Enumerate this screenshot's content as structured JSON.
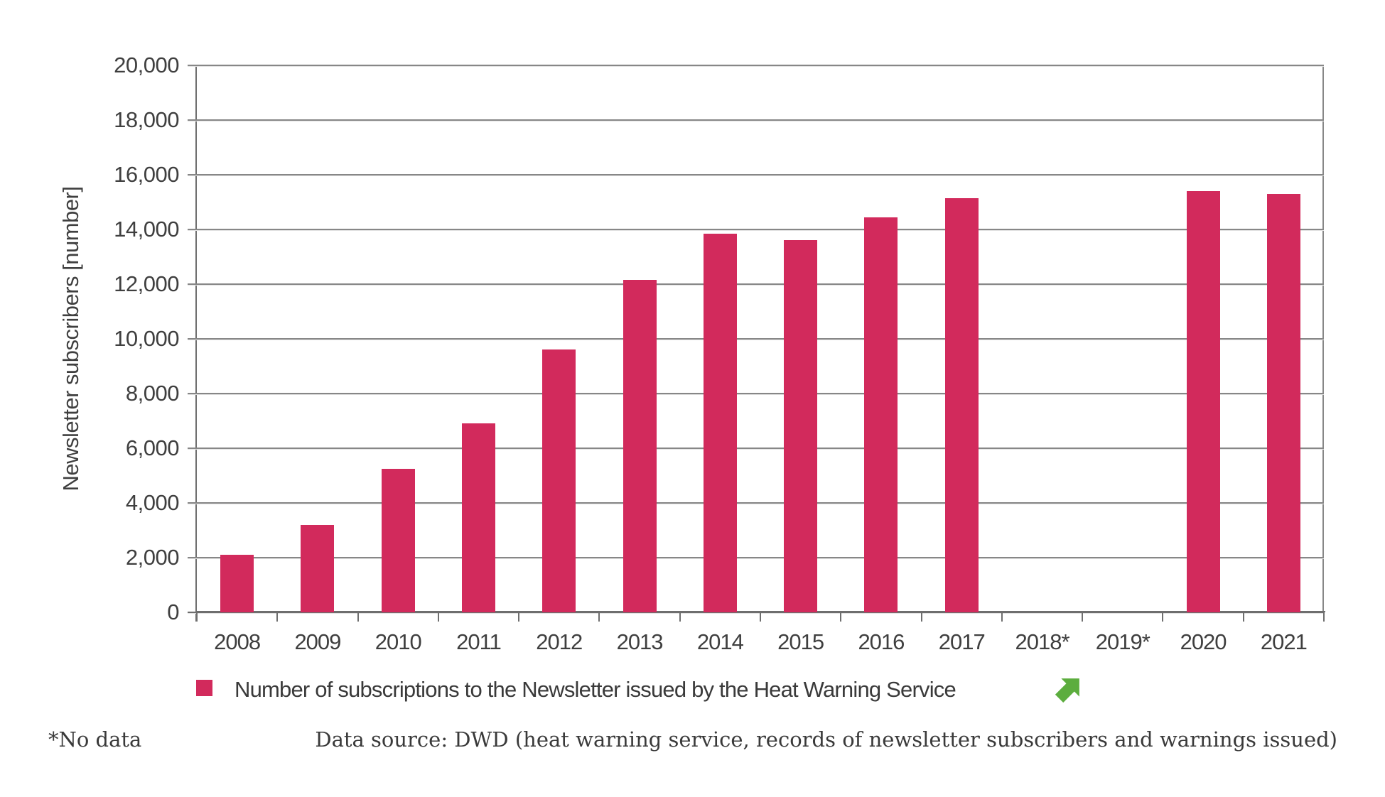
{
  "colors": {
    "bar": "#d22a5c",
    "gridline": "#878787",
    "axis": "#6e6e6e",
    "text": "#3f3f3f",
    "arrow_green": "#5cad3e",
    "background": "#ffffff"
  },
  "chart_data": {
    "type": "bar",
    "title": "",
    "xlabel": "",
    "ylabel": "Newsletter subscribers [number]",
    "categories": [
      "2008",
      "2009",
      "2010",
      "2011",
      "2012",
      "2013",
      "2014",
      "2015",
      "2016",
      "2017",
      "2018*",
      "2019*",
      "2020",
      "2021"
    ],
    "values": [
      2100,
      3200,
      5250,
      6900,
      9600,
      12150,
      13850,
      13600,
      14450,
      15150,
      null,
      null,
      15400,
      15300
    ],
    "ylim": [
      0,
      20000
    ],
    "ytick_step": 2000,
    "ytick_labels": [
      "20,000",
      "18,000",
      "16,000",
      "14,000",
      "12,000",
      "10,000",
      "8,000",
      "6,000",
      "4,000",
      "2,000",
      "0"
    ],
    "grid": true,
    "legend_position": "bottom",
    "series_name": "Number of subscriptions to the Newsletter issued by the Heat Warning Service",
    "no_data_years": [
      "2018",
      "2019"
    ]
  },
  "legend": {
    "label": "Number of subscriptions to the Newsletter issued by the Heat Warning Service",
    "trend_icon": "trend-up-arrow-icon"
  },
  "footer": {
    "footnote": "*No data",
    "datasource": "Data source: DWD (heat warning service, records of newsletter subscribers and warnings issued)"
  }
}
